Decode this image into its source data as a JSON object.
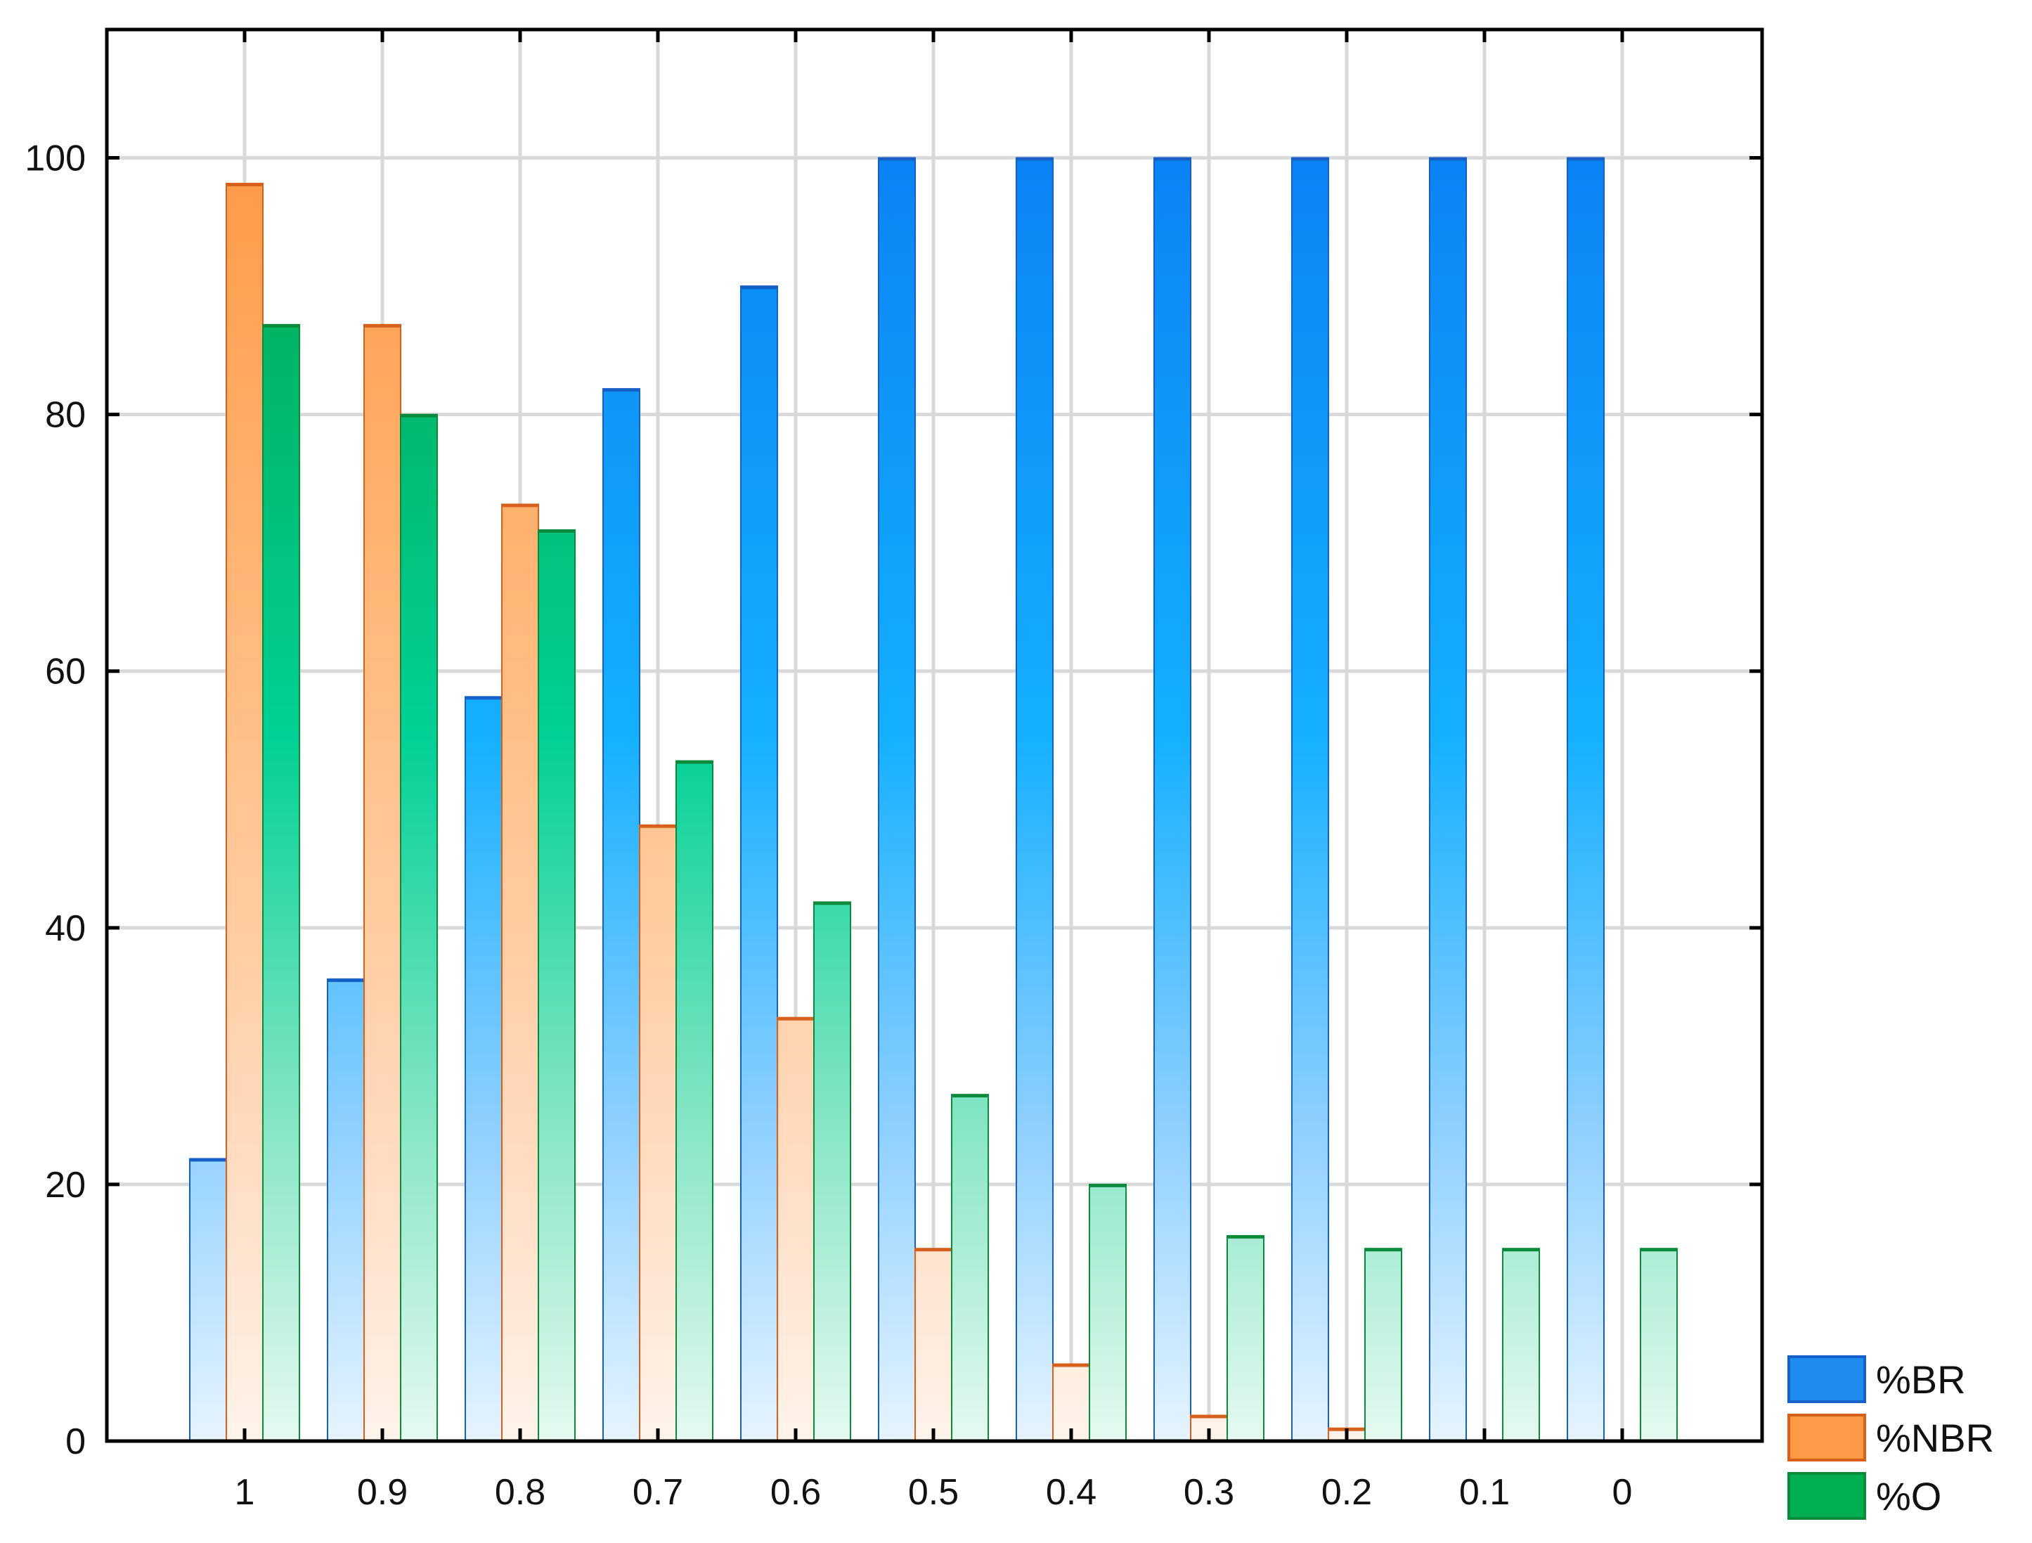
{
  "chart_data": {
    "type": "bar",
    "title": "",
    "xlabel": "",
    "ylabel": "",
    "categories": [
      "1",
      "0.9",
      "0.8",
      "0.7",
      "0.6",
      "0.5",
      "0.4",
      "0.3",
      "0.2",
      "0.1",
      "0"
    ],
    "series": [
      {
        "name": "%BR",
        "values": [
          22,
          36,
          58,
          82,
          90,
          100,
          100,
          100,
          100,
          100,
          100
        ],
        "color": "#1e8cf0",
        "edge": "#1560c8"
      },
      {
        "name": "%NBR",
        "values": [
          98,
          87,
          73,
          48,
          33,
          15,
          6,
          2,
          1,
          0,
          0
        ],
        "color": "#ff9a45",
        "edge": "#d8601c"
      },
      {
        "name": "%O",
        "values": [
          87,
          80,
          71,
          53,
          42,
          27,
          20,
          16,
          15,
          15,
          15
        ],
        "color": "#00b050",
        "edge": "#0a8a3a"
      }
    ],
    "ylim": [
      0,
      110
    ],
    "yticks": [
      0,
      20,
      40,
      60,
      80,
      100
    ],
    "grid": true,
    "legend_position": "bottom-right"
  }
}
